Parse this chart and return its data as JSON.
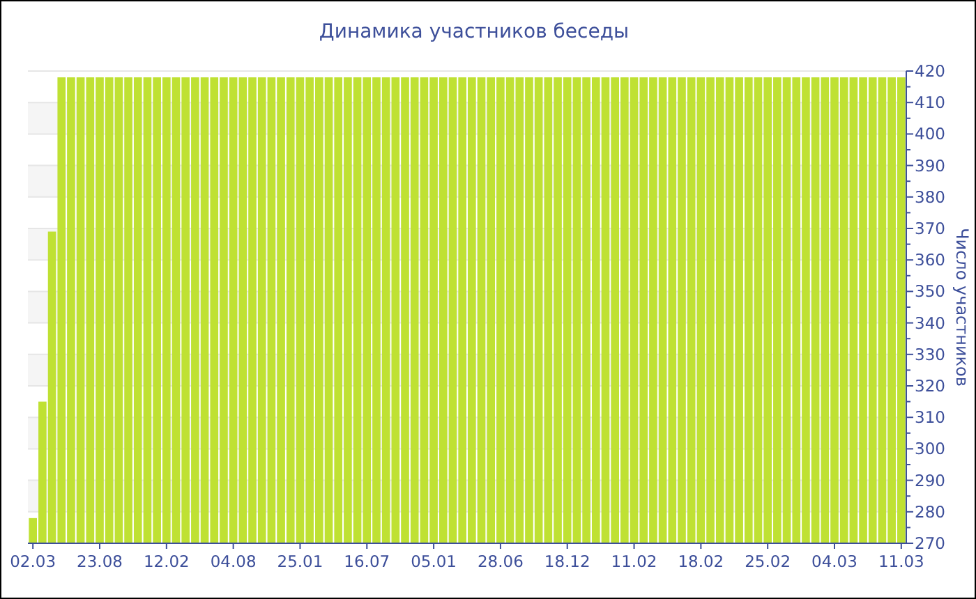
{
  "chart_data": {
    "type": "bar",
    "title": "Динамика участников беседы",
    "ylabel": "Число участников",
    "categories": [
      "02.03",
      null,
      null,
      null,
      null,
      null,
      null,
      "23.08",
      null,
      null,
      null,
      null,
      null,
      null,
      "12.02",
      null,
      null,
      null,
      null,
      null,
      null,
      "04.08",
      null,
      null,
      null,
      null,
      null,
      null,
      "25.01",
      null,
      null,
      null,
      null,
      null,
      null,
      "16.07",
      null,
      null,
      null,
      null,
      null,
      null,
      "05.01",
      null,
      null,
      null,
      null,
      null,
      null,
      "28.06",
      null,
      null,
      null,
      null,
      null,
      null,
      "18.12",
      null,
      null,
      null,
      null,
      null,
      null,
      "11.02",
      null,
      null,
      null,
      null,
      null,
      null,
      "18.02",
      null,
      null,
      null,
      null,
      null,
      null,
      "25.02",
      null,
      null,
      null,
      null,
      null,
      null,
      "04.03",
      null,
      null,
      null,
      null,
      null,
      null,
      "11.03"
    ],
    "values": [
      278,
      315,
      369,
      418,
      418,
      418,
      418,
      418,
      418,
      418,
      418,
      418,
      418,
      418,
      418,
      418,
      418,
      418,
      418,
      418,
      418,
      418,
      418,
      418,
      418,
      418,
      418,
      418,
      418,
      418,
      418,
      418,
      418,
      418,
      418,
      418,
      418,
      418,
      418,
      418,
      418,
      418,
      418,
      418,
      418,
      418,
      418,
      418,
      418,
      418,
      418,
      418,
      418,
      418,
      418,
      418,
      418,
      418,
      418,
      418,
      418,
      418,
      418,
      418,
      418,
      418,
      418,
      418,
      418,
      418,
      418,
      418,
      418,
      418,
      418,
      418,
      418,
      418,
      418,
      418,
      418,
      418,
      418,
      418,
      418,
      418,
      418,
      418,
      418,
      418,
      418,
      418
    ],
    "color": "#bfe133",
    "ylim": [
      270,
      420
    ],
    "yticks": [
      270,
      280,
      290,
      300,
      310,
      320,
      330,
      340,
      350,
      360,
      370,
      380,
      390,
      400,
      410,
      420
    ],
    "grid": "y"
  }
}
